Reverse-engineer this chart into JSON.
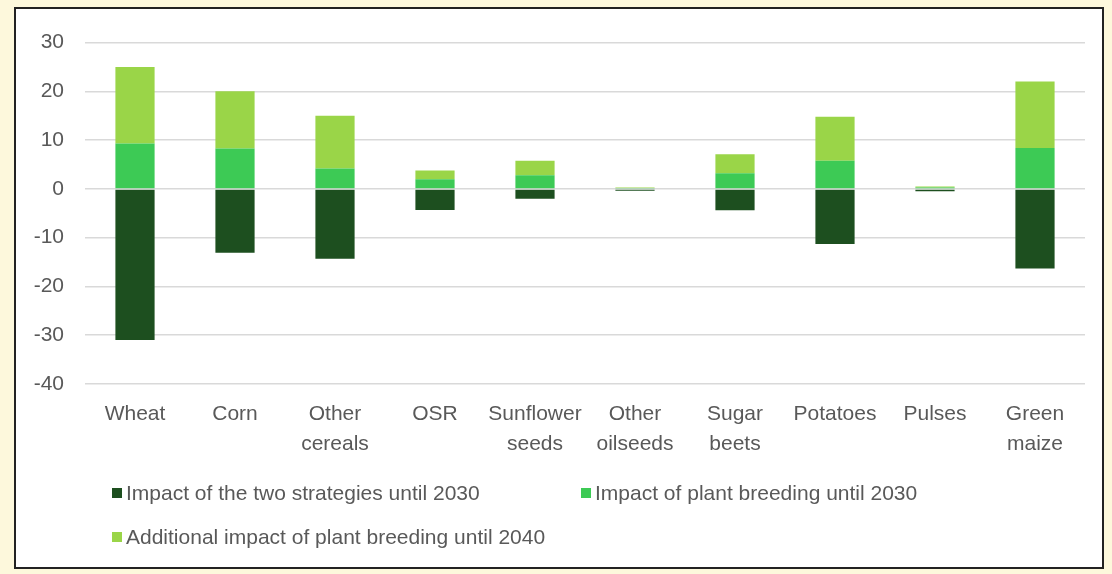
{
  "chart_data": {
    "type": "bar",
    "stacked": true,
    "categories": [
      "Wheat",
      "Corn",
      "Other cereals",
      "OSR",
      "Sunflower seeds",
      "Other oilseeds",
      "Sugar beets",
      "Potatoes",
      "Pulses",
      "Green maize"
    ],
    "series": [
      {
        "name": "Impact of the two strategies until 2030",
        "color": "#1d4f1f",
        "values": [
          -31,
          -13.1,
          -14.3,
          -4.3,
          -2,
          -0.4,
          -4.4,
          -11.3,
          -0.5,
          -16.3
        ]
      },
      {
        "name": "Impact of plant breeding until 2030",
        "color": "#3dca55",
        "values": [
          9.3,
          8.3,
          4.2,
          2,
          2.8,
          0.2,
          3.2,
          5.8,
          0.3,
          8.4
        ]
      },
      {
        "name": "Additional impact of plant breeding until 2040",
        "color": "#9ad548",
        "values": [
          15.7,
          11.7,
          10.8,
          1.8,
          3,
          0.1,
          3.9,
          9,
          0.2,
          13.6
        ]
      }
    ],
    "ylim": [
      -40,
      30
    ],
    "yticks": [
      -40,
      -30,
      -20,
      -10,
      0,
      10,
      20,
      30
    ],
    "grid": "y",
    "legend": "bottom"
  }
}
